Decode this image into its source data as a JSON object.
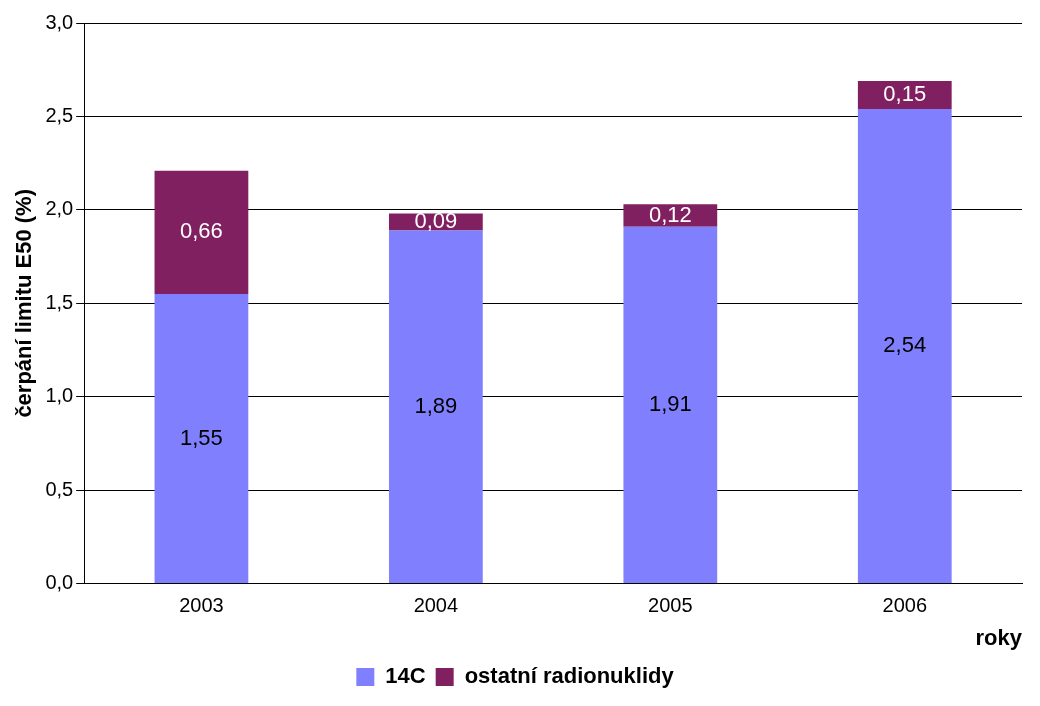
{
  "chart_data": {
    "type": "bar",
    "stacked": true,
    "categories": [
      "2003",
      "2004",
      "2005",
      "2006"
    ],
    "series": [
      {
        "name": "14C",
        "color": "#8080ff",
        "values": [
          1.55,
          1.89,
          1.91,
          2.54
        ],
        "value_labels": [
          "1,55",
          "1,89",
          "1,91",
          "2,54"
        ]
      },
      {
        "name": "ostatní radionuklidy",
        "color": "#802060",
        "values": [
          0.66,
          0.09,
          0.12,
          0.15
        ],
        "value_labels": [
          "0,66",
          "0,09",
          "0,12",
          "0,15"
        ]
      }
    ],
    "ylim": [
      0,
      3
    ],
    "yticks": [
      {
        "value": 0,
        "label": "0,0"
      },
      {
        "value": 0.5,
        "label": "0,5"
      },
      {
        "value": 1,
        "label": "1,0"
      },
      {
        "value": 1.5,
        "label": "1,5"
      },
      {
        "value": 2,
        "label": "2,0"
      },
      {
        "value": 2.5,
        "label": "2,5"
      },
      {
        "value": 3,
        "label": "3,0"
      }
    ],
    "ylabel": "čerpání limitu E50 (%)",
    "xlabel": "roky",
    "grid": "y",
    "legend": "bottom"
  }
}
